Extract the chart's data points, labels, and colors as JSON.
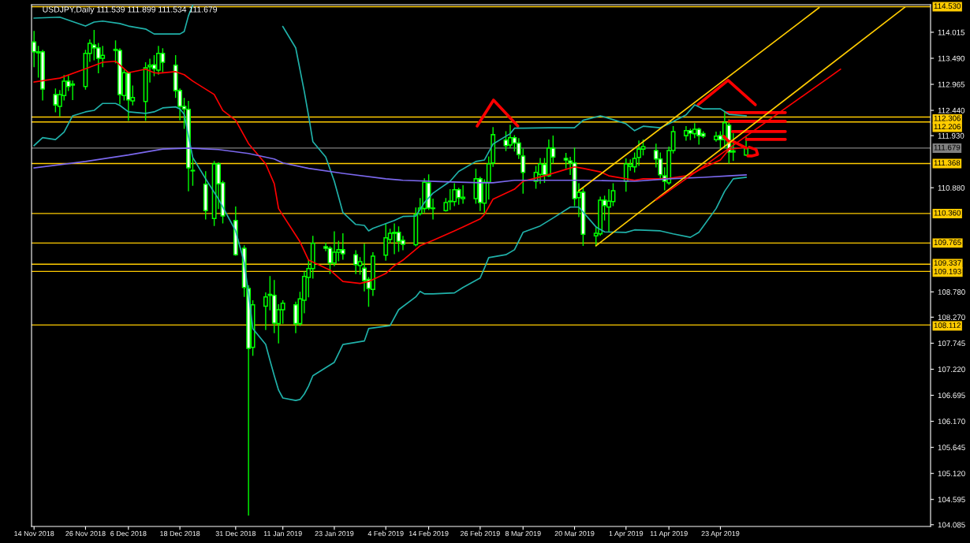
{
  "chart_data": {
    "type": "candlestick",
    "title": "USDJPY,Daily 111.539 111.899 111.534 111.679",
    "color": "#00ff00",
    "x": [
      "2018-11-14",
      "2018-11-15",
      "2018-11-16",
      "2018-11-19",
      "2018-11-20",
      "2018-11-21",
      "2018-11-22",
      "2018-11-23",
      "2018-11-26",
      "2018-11-27",
      "2018-11-28",
      "2018-11-29",
      "2018-11-30",
      "2018-12-03",
      "2018-12-04",
      "2018-12-05",
      "2018-12-06",
      "2018-12-07",
      "2018-12-10",
      "2018-12-11",
      "2018-12-12",
      "2018-12-13",
      "2018-12-14",
      "2018-12-17",
      "2018-12-18",
      "2018-12-19",
      "2018-12-20",
      "2018-12-21",
      "2018-12-24",
      "2018-12-26",
      "2018-12-27",
      "2018-12-28",
      "2018-12-31",
      "2019-01-02",
      "2019-01-03",
      "2019-01-04",
      "2019-01-07",
      "2019-01-08",
      "2019-01-09",
      "2019-01-10",
      "2019-01-11",
      "2019-01-14",
      "2019-01-15",
      "2019-01-16",
      "2019-01-17",
      "2019-01-18",
      "2019-01-21",
      "2019-01-22",
      "2019-01-23",
      "2019-01-24",
      "2019-01-25",
      "2019-01-28",
      "2019-01-29",
      "2019-01-30",
      "2019-01-31",
      "2019-02-01",
      "2019-02-04",
      "2019-02-05",
      "2019-02-06",
      "2019-02-07",
      "2019-02-08",
      "2019-02-11",
      "2019-02-12",
      "2019-02-13",
      "2019-02-14",
      "2019-02-15",
      "2019-02-18",
      "2019-02-19",
      "2019-02-20",
      "2019-02-21",
      "2019-02-22",
      "2019-02-25",
      "2019-02-26",
      "2019-02-27",
      "2019-02-28",
      "2019-03-01",
      "2019-03-04",
      "2019-03-05",
      "2019-03-06",
      "2019-03-07",
      "2019-03-08",
      "2019-03-11",
      "2019-03-12",
      "2019-03-13",
      "2019-03-14",
      "2019-03-15",
      "2019-03-18",
      "2019-03-19",
      "2019-03-20",
      "2019-03-21",
      "2019-03-22",
      "2019-03-25",
      "2019-03-26",
      "2019-03-27",
      "2019-03-28",
      "2019-03-29",
      "2019-04-01",
      "2019-04-02",
      "2019-04-03",
      "2019-04-04",
      "2019-04-05",
      "2019-04-08",
      "2019-04-09",
      "2019-04-10",
      "2019-04-11",
      "2019-04-12",
      "2019-04-15",
      "2019-04-16",
      "2019-04-17",
      "2019-04-18",
      "2019-04-19",
      "2019-04-22",
      "2019-04-23",
      "2019-04-24",
      "2019-04-25",
      "2019-04-26",
      "2019-04-29"
    ],
    "ohlc": [
      [
        113.82,
        114.03,
        113.32,
        113.62
      ],
      [
        113.6,
        113.73,
        113.11,
        113.62
      ],
      [
        113.62,
        113.65,
        112.65,
        112.87
      ],
      [
        112.76,
        112.87,
        112.41,
        112.55
      ],
      [
        112.52,
        112.84,
        112.33,
        112.76
      ],
      [
        112.74,
        113.14,
        112.65,
        113.03
      ],
      [
        113.03,
        113.13,
        112.84,
        112.92
      ],
      [
        112.95,
        113.03,
        112.66,
        112.97
      ],
      [
        112.92,
        113.65,
        112.87,
        113.59
      ],
      [
        113.59,
        113.86,
        113.43,
        113.79
      ],
      [
        113.76,
        114.05,
        113.46,
        113.7
      ],
      [
        113.7,
        113.79,
        113.2,
        113.49
      ],
      [
        113.49,
        113.73,
        113.32,
        113.55
      ],
      [
        113.65,
        113.84,
        113.4,
        113.67
      ],
      [
        113.65,
        113.68,
        112.57,
        112.76
      ],
      [
        112.74,
        113.25,
        112.65,
        113.2
      ],
      [
        113.19,
        113.2,
        112.24,
        112.65
      ],
      [
        112.63,
        112.93,
        112.55,
        112.7
      ],
      [
        112.62,
        113.4,
        112.24,
        113.3
      ],
      [
        113.32,
        113.47,
        113.01,
        113.35
      ],
      [
        113.36,
        113.54,
        113.14,
        113.28
      ],
      [
        113.25,
        113.73,
        113.17,
        113.59
      ],
      [
        113.59,
        113.68,
        113.22,
        113.41
      ],
      [
        113.35,
        113.54,
        112.7,
        112.84
      ],
      [
        112.84,
        112.87,
        112.25,
        112.52
      ],
      [
        112.52,
        112.68,
        112.08,
        112.47
      ],
      [
        112.46,
        112.62,
        110.82,
        111.28
      ],
      [
        111.23,
        111.47,
        110.93,
        111.22
      ],
      [
        110.95,
        111.2,
        110.25,
        110.42
      ],
      [
        110.26,
        111.41,
        110.12,
        111.36
      ],
      [
        111.36,
        111.38,
        110.46,
        110.96
      ],
      [
        110.98,
        111.01,
        110.17,
        110.31
      ],
      [
        110.22,
        110.49,
        109.52,
        109.53
      ],
      [
        109.66,
        109.71,
        108.69,
        108.87
      ],
      [
        108.85,
        108.9,
        104.28,
        107.64
      ],
      [
        107.66,
        108.6,
        107.5,
        108.52
      ],
      [
        108.49,
        108.76,
        108.02,
        108.68
      ],
      [
        108.71,
        109.09,
        108.42,
        108.73
      ],
      [
        108.71,
        109.01,
        107.96,
        108.15
      ],
      [
        108.14,
        108.52,
        107.75,
        108.42
      ],
      [
        108.42,
        108.6,
        108.15,
        108.55
      ],
      [
        108.52,
        108.57,
        107.96,
        108.14
      ],
      [
        108.14,
        108.77,
        108.1,
        108.64
      ],
      [
        108.61,
        109.18,
        108.36,
        109.09
      ],
      [
        109.07,
        109.41,
        108.68,
        109.25
      ],
      [
        109.25,
        109.9,
        109.06,
        109.76
      ],
      [
        109.69,
        109.76,
        109.61,
        109.66
      ],
      [
        109.66,
        109.69,
        109.15,
        109.36
      ],
      [
        109.36,
        109.99,
        109.31,
        109.58
      ],
      [
        109.58,
        109.8,
        109.41,
        109.63
      ],
      [
        109.63,
        109.95,
        109.44,
        109.55
      ],
      [
        109.53,
        109.61,
        109.15,
        109.33
      ],
      [
        109.31,
        109.47,
        109.14,
        109.39
      ],
      [
        109.26,
        109.74,
        108.8,
        109.01
      ],
      [
        109.03,
        109.07,
        108.49,
        108.85
      ],
      [
        108.83,
        109.57,
        108.71,
        109.5
      ],
      [
        109.52,
        110.15,
        109.42,
        109.87
      ],
      [
        109.84,
        110.04,
        109.77,
        109.96
      ],
      [
        109.96,
        110.15,
        109.55,
        109.98
      ],
      [
        109.98,
        110.09,
        109.6,
        109.8
      ],
      [
        109.82,
        109.9,
        109.63,
        109.74
      ],
      [
        109.73,
        110.47,
        109.71,
        110.34
      ],
      [
        110.36,
        110.66,
        110.33,
        110.47
      ],
      [
        110.46,
        111.06,
        110.39,
        110.99
      ],
      [
        110.98,
        111.14,
        110.44,
        110.47
      ],
      [
        110.46,
        110.65,
        110.25,
        110.47
      ],
      [
        110.42,
        110.66,
        110.41,
        110.58
      ],
      [
        110.6,
        110.84,
        110.44,
        110.61
      ],
      [
        110.6,
        110.96,
        110.52,
        110.84
      ],
      [
        110.84,
        110.87,
        110.55,
        110.68
      ],
      [
        110.66,
        110.92,
        110.57,
        110.69
      ],
      [
        110.66,
        111.25,
        110.57,
        111.06
      ],
      [
        111.06,
        111.09,
        110.42,
        110.58
      ],
      [
        110.57,
        111.04,
        110.36,
        110.99
      ],
      [
        110.99,
        111.5,
        110.65,
        111.36
      ],
      [
        111.38,
        112.09,
        111.31,
        111.95
      ],
      [
        111.84,
        112.01,
        111.63,
        111.73
      ],
      [
        111.74,
        112.14,
        111.69,
        111.89
      ],
      [
        111.89,
        111.93,
        111.62,
        111.78
      ],
      [
        111.78,
        111.87,
        111.47,
        111.55
      ],
      [
        111.52,
        111.66,
        110.77,
        111.19
      ],
      [
        111.01,
        111.31,
        110.87,
        111.19
      ],
      [
        111.15,
        111.47,
        110.97,
        111.36
      ],
      [
        111.35,
        111.47,
        110.99,
        111.14
      ],
      [
        111.12,
        111.84,
        111.11,
        111.68
      ],
      [
        111.68,
        111.92,
        111.38,
        111.5
      ],
      [
        111.47,
        111.57,
        111.28,
        111.44
      ],
      [
        111.42,
        111.49,
        111.15,
        111.38
      ],
      [
        111.38,
        111.68,
        110.52,
        110.66
      ],
      [
        110.68,
        110.96,
        110.3,
        110.79
      ],
      [
        110.79,
        110.88,
        109.72,
        109.94
      ],
      [
        109.91,
        110.09,
        109.71,
        109.96
      ],
      [
        109.95,
        110.69,
        109.92,
        110.63
      ],
      [
        110.63,
        110.71,
        110.23,
        110.52
      ],
      [
        110.49,
        110.84,
        109.99,
        110.61
      ],
      [
        110.6,
        110.96,
        110.52,
        110.82
      ],
      [
        111.01,
        111.46,
        110.81,
        111.36
      ],
      [
        111.31,
        111.44,
        111.23,
        111.35
      ],
      [
        111.3,
        111.58,
        111.2,
        111.47
      ],
      [
        111.49,
        111.82,
        111.33,
        111.66
      ],
      [
        111.66,
        111.84,
        111.54,
        111.71
      ],
      [
        111.63,
        111.76,
        111.3,
        111.46
      ],
      [
        111.46,
        111.58,
        111.06,
        111.14
      ],
      [
        111.12,
        111.28,
        110.84,
        111.01
      ],
      [
        110.98,
        111.7,
        110.95,
        111.63
      ],
      [
        111.63,
        112.11,
        111.58,
        112.01
      ],
      [
        111.93,
        112.11,
        111.84,
        112.03
      ],
      [
        112.03,
        112.06,
        111.85,
        111.98
      ],
      [
        111.97,
        112.17,
        111.89,
        112.06
      ],
      [
        112.06,
        112.08,
        111.76,
        111.93
      ],
      [
        111.97,
        112.01,
        111.89,
        111.92
      ],
      [
        111.85,
        112.0,
        111.82,
        111.92
      ],
      [
        111.93,
        112.01,
        111.66,
        111.85
      ],
      [
        111.85,
        112.41,
        111.69,
        112.19
      ],
      [
        112.14,
        112.25,
        111.38,
        111.6
      ],
      [
        111.62,
        111.97,
        111.43,
        111.6
      ],
      [
        111.539,
        111.899,
        111.534,
        111.679
      ]
    ],
    "series": [
      {
        "type": "line",
        "color": "#20b2aa",
        "x": [
          "2018-11-14",
          "2018-11-20",
          "2018-11-26",
          "2018-11-28",
          "2018-11-30",
          "2018-12-04",
          "2018-12-06",
          "2018-12-10",
          "2018-12-12",
          "2018-12-14",
          "2018-12-18",
          "2018-12-19",
          "2018-12-20",
          "2018-12-21",
          "2019-01-02",
          "2019-01-11",
          "2019-01-14",
          "2019-01-16",
          "2019-01-17",
          "2019-01-18",
          "2019-01-21",
          "2019-01-23",
          "2019-01-25",
          "2019-01-28",
          "2019-01-30",
          "2019-01-31",
          "2019-02-01",
          "2019-02-06",
          "2019-02-08",
          "2019-02-11",
          "2019-02-13",
          "2019-02-15",
          "2019-02-19",
          "2019-02-21",
          "2019-02-25",
          "2019-02-27",
          "2019-03-01",
          "2019-03-05",
          "2019-03-06",
          "2019-03-08",
          "2019-03-14",
          "2019-03-20",
          "2019-03-22",
          "2019-03-26",
          "2019-03-28",
          "2019-04-01",
          "2019-04-03",
          "2019-04-05",
          "2019-04-09",
          "2019-04-11",
          "2019-04-15",
          "2019-04-17",
          "2019-04-19",
          "2019-04-23",
          "2019-04-25",
          "2019-04-29"
        ],
        "values": [
          114.3,
          114.32,
          114.14,
          114.22,
          114.24,
          114.19,
          114.14,
          114.08,
          113.98,
          113.98,
          113.98,
          114.03,
          114.35,
          114.56,
          null,
          114.13,
          113.7,
          112.82,
          112.33,
          111.81,
          111.5,
          111.01,
          110.38,
          110.14,
          110.12,
          110.01,
          110.06,
          110.22,
          110.3,
          110.31,
          110.58,
          110.77,
          111.01,
          111.21,
          111.41,
          111.44,
          111.76,
          111.97,
          112.08,
          112.08,
          112.09,
          112.09,
          112.24,
          112.33,
          112.28,
          112.17,
          112.03,
          112.12,
          112.09,
          112.17,
          112.35,
          112.55,
          112.47,
          112.47,
          112.36,
          112.33
        ]
      },
      {
        "type": "line",
        "color": "#20b2aa",
        "x": [
          "2018-11-14",
          "2018-11-16",
          "2018-11-19",
          "2018-11-21",
          "2018-11-23",
          "2018-11-26",
          "2018-11-28",
          "2018-11-30",
          "2018-12-03",
          "2018-12-04",
          "2018-12-06",
          "2018-12-10",
          "2018-12-12",
          "2018-12-14",
          "2018-12-17",
          "2018-12-18",
          "2018-12-19",
          "2018-12-20",
          "2018-12-21",
          "2018-12-24",
          "2018-12-27",
          "2018-12-31",
          "2019-01-02",
          "2019-01-03",
          "2019-01-04",
          "2019-01-07",
          "2019-01-08",
          "2019-01-09",
          "2019-01-10",
          "2019-01-11",
          "2019-01-14",
          "2019-01-15",
          "2019-01-16",
          "2019-01-17",
          "2019-01-18",
          "2019-01-23",
          "2019-01-25",
          "2019-01-30",
          "2019-01-31",
          "2019-02-05",
          "2019-02-07",
          "2019-02-11",
          "2019-02-12",
          "2019-02-13",
          "2019-02-15",
          "2019-02-20",
          "2019-02-22",
          "2019-02-26",
          "2019-02-27",
          "2019-02-28",
          "2019-03-04",
          "2019-03-06",
          "2019-03-08",
          "2019-03-12",
          "2019-03-15",
          "2019-03-19",
          "2019-03-21",
          "2019-03-25",
          "2019-03-27",
          "2019-04-01",
          "2019-04-03",
          "2019-04-09",
          "2019-04-12",
          "2019-04-16",
          "2019-04-18",
          "2019-04-22",
          "2019-04-24",
          "2019-04-26",
          "2019-04-29"
        ],
        "values": [
          111.73,
          111.89,
          111.85,
          112.0,
          112.33,
          112.41,
          112.44,
          112.58,
          112.58,
          112.54,
          112.41,
          112.38,
          112.41,
          112.49,
          112.51,
          112.47,
          112.36,
          111.92,
          111.49,
          111.06,
          110.65,
          110.01,
          109.37,
          108.74,
          108.04,
          107.72,
          107.4,
          107.09,
          106.8,
          106.64,
          106.59,
          106.61,
          106.72,
          106.88,
          107.09,
          107.36,
          107.72,
          107.79,
          108.04,
          108.1,
          108.42,
          108.68,
          108.79,
          108.74,
          108.74,
          108.76,
          108.87,
          109.06,
          109.26,
          109.47,
          109.53,
          109.63,
          109.98,
          110.11,
          110.27,
          110.49,
          110.49,
          110.09,
          109.99,
          109.98,
          110.03,
          110.01,
          109.95,
          109.88,
          109.98,
          110.46,
          110.81,
          111.06,
          111.09
        ]
      },
      {
        "type": "line",
        "color": "#ff0000",
        "x": [
          "2018-11-14",
          "2018-11-20",
          "2018-11-26",
          "2018-11-30",
          "2018-12-03",
          "2018-12-06",
          "2018-12-10",
          "2018-12-12",
          "2018-12-13",
          "2018-12-17",
          "2018-12-19",
          "2018-12-21",
          "2018-12-26",
          "2018-12-28",
          "2018-12-31",
          "2019-01-03",
          "2019-01-07",
          "2019-01-09",
          "2019-01-10",
          "2019-01-15",
          "2019-01-17",
          "2019-01-22",
          "2019-01-25",
          "2019-01-29",
          "2019-01-31",
          "2019-02-04",
          "2019-02-06",
          "2019-02-08",
          "2019-02-12",
          "2019-02-15",
          "2019-02-20",
          "2019-02-22",
          "2019-02-26",
          "2019-02-27",
          "2019-03-01",
          "2019-03-06",
          "2019-03-08",
          "2019-03-13",
          "2019-03-18",
          "2019-03-20",
          "2019-03-22",
          "2019-03-26",
          "2019-03-28",
          "2019-04-01",
          "2019-04-03",
          "2019-04-05",
          "2019-04-09",
          "2019-04-11",
          "2019-04-15",
          "2019-04-17",
          "2019-04-19",
          "2019-04-23",
          "2019-04-25",
          "2019-04-29"
        ],
        "values": [
          113.01,
          113.09,
          113.28,
          113.41,
          113.43,
          113.2,
          113.27,
          113.2,
          113.19,
          113.22,
          113.16,
          113.03,
          112.76,
          112.44,
          112.24,
          111.77,
          111.36,
          110.96,
          110.46,
          109.79,
          109.42,
          109.22,
          108.99,
          108.95,
          108.99,
          109.15,
          109.31,
          109.42,
          109.71,
          109.82,
          110.01,
          110.09,
          110.25,
          110.34,
          110.65,
          110.85,
          111.01,
          111.12,
          111.25,
          111.3,
          111.27,
          111.2,
          111.12,
          111.06,
          111.03,
          111.06,
          111.06,
          111.07,
          111.12,
          111.19,
          111.28,
          111.44,
          111.65,
          111.7
        ]
      },
      {
        "type": "line",
        "color": "#7b68ee",
        "x": [
          "2018-11-14",
          "2018-11-26",
          "2018-12-06",
          "2018-12-14",
          "2018-12-20",
          "2018-12-27",
          "2019-01-03",
          "2019-01-09",
          "2019-01-11",
          "2019-01-17",
          "2019-01-25",
          "2019-02-04",
          "2019-02-08",
          "2019-02-18",
          "2019-02-26",
          "2019-03-01",
          "2019-03-06",
          "2019-03-08",
          "2019-03-22",
          "2019-04-03",
          "2019-04-11",
          "2019-04-19",
          "2019-04-25",
          "2019-04-29"
        ],
        "values": [
          111.28,
          111.41,
          111.54,
          111.66,
          111.68,
          111.65,
          111.57,
          111.46,
          111.38,
          111.27,
          111.17,
          111.06,
          111.03,
          111.0,
          110.98,
          110.98,
          111.03,
          111.03,
          111.03,
          111.01,
          111.06,
          111.09,
          111.12,
          111.14
        ]
      },
      {
        "type": "line",
        "color": "#ffcc00",
        "x": [
          "2019-03-21",
          "2019-05-16"
        ],
        "values": [
          110.82,
          114.51
        ]
      },
      {
        "type": "line",
        "color": "#ffcc00",
        "x": [
          "2019-03-25",
          "2019-06-05"
        ],
        "values": [
          109.71,
          114.52
        ]
      },
      {
        "type": "line",
        "color": "#ff0000",
        "x": [
          "2019-04-08",
          "2019-05-21"
        ],
        "values": [
          110.63,
          113.27
        ]
      }
    ],
    "ref_lines": [
      {
        "axis": "y",
        "value": 114.53,
        "label": "114.530",
        "color": "#ffcc00"
      },
      {
        "axis": "y",
        "value": 112.306,
        "label": "112.306",
        "color": "#ffcc00"
      },
      {
        "axis": "y",
        "value": 112.206,
        "label": "112.206",
        "color": "#ffcc00"
      },
      {
        "axis": "y",
        "value": 111.679,
        "label": "111.679",
        "color": "#808080"
      },
      {
        "axis": "y",
        "value": 111.368,
        "label": "111.368",
        "color": "#ffcc00"
      },
      {
        "axis": "y",
        "value": 110.36,
        "label": "110.360",
        "color": "#ffcc00"
      },
      {
        "axis": "y",
        "value": 109.765,
        "label": "109.765",
        "color": "#ffcc00"
      },
      {
        "axis": "y",
        "value": 109.337,
        "label": "109.337",
        "color": "#ffcc00"
      },
      {
        "axis": "y",
        "value": 109.193,
        "label": "109.193",
        "color": "#ffcc00"
      },
      {
        "axis": "y",
        "value": 108.112,
        "label": "108.112",
        "color": "#ffcc00"
      }
    ],
    "xlim": [
      "2018-11-13T10:00",
      "2019-06-11"
    ],
    "xticks": [
      {
        "value": "2018-11-14",
        "label": "14 Nov 2018"
      },
      {
        "value": "2018-11-26",
        "label": "26 Nov 2018"
      },
      {
        "value": "2018-12-06",
        "label": "6 Dec 2018"
      },
      {
        "value": "2018-12-18",
        "label": "18 Dec 2018"
      },
      {
        "value": "2018-12-31",
        "label": "31 Dec 2018"
      },
      {
        "value": "2019-01-11",
        "label": "11 Jan 2019"
      },
      {
        "value": "2019-01-23",
        "label": "23 Jan 2019"
      },
      {
        "value": "2019-02-04",
        "label": "4 Feb 2019"
      },
      {
        "value": "2019-02-14",
        "label": "14 Feb 2019"
      },
      {
        "value": "2019-02-26",
        "label": "26 Feb 2019"
      },
      {
        "value": "2019-03-08",
        "label": "8 Mar 2019"
      },
      {
        "value": "2019-03-20",
        "label": "20 Mar 2019"
      },
      {
        "value": "2019-04-01",
        "label": "1 Apr 2019"
      },
      {
        "value": "2019-04-11",
        "label": "11 Apr 2019"
      },
      {
        "value": "2019-04-23",
        "label": "23 Apr 2019"
      }
    ],
    "ylim": [
      104.05,
      114.57
    ],
    "yticks": [
      114.015,
      {
        "value": 113.49,
        "label": "113.490"
      },
      112.965,
      {
        "value": 112.44,
        "label": "112.440"
      },
      {
        "value": 111.93,
        "label": "111.930"
      },
      {
        "value": 110.88,
        "label": "110.880"
      },
      {
        "value": 108.78,
        "label": "108.780"
      },
      {
        "value": 108.27,
        "label": "108.270"
      },
      107.745,
      {
        "value": 107.22,
        "label": "107.220"
      },
      106.695,
      {
        "value": 106.17,
        "label": "106.170"
      },
      105.645,
      {
        "value": 105.12,
        "label": "105.120"
      },
      104.595,
      104.085
    ]
  }
}
